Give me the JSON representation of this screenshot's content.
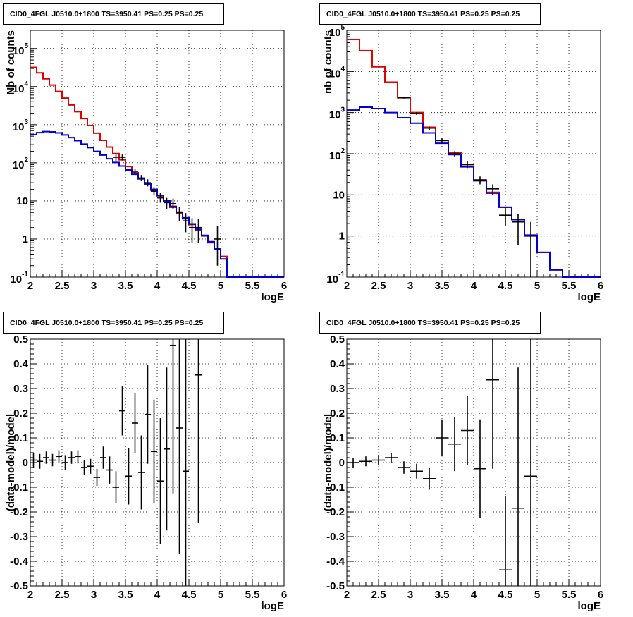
{
  "chart_data": [
    {
      "type": "histogram",
      "title": "CID0_4FGL J0510.0+1800 TS=3950.41 PS=0.25 PS=0.25",
      "xlabel": "logE",
      "ylabel": "Nb of counts",
      "xlim": [
        2,
        6
      ],
      "ylim": [
        0.1,
        300000
      ],
      "log_y": true,
      "grid": true,
      "x_ticks": [
        "2",
        "2.5",
        "3",
        "3.5",
        "4",
        "4.5",
        "5",
        "5.5",
        "6"
      ],
      "y_ticks": [
        {
          "value": 0.1,
          "base": "10",
          "exp": "-1"
        },
        {
          "value": 1,
          "label": "1"
        },
        {
          "value": 10,
          "label": "10"
        },
        {
          "value": 100,
          "base": "10",
          "exp": "2"
        },
        {
          "value": 1000,
          "base": "10",
          "exp": "3"
        },
        {
          "value": 10000,
          "base": "10",
          "exp": "4"
        },
        {
          "value": 100000,
          "base": "10",
          "exp": "5"
        }
      ],
      "bin_edges": [
        2.0,
        2.1,
        2.2,
        2.3,
        2.4,
        2.5,
        2.6,
        2.7,
        2.8,
        2.9,
        3.0,
        3.1,
        3.2,
        3.3,
        3.4,
        3.5,
        3.6,
        3.7,
        3.8,
        3.9,
        4.0,
        4.1,
        4.2,
        4.3,
        4.4,
        4.5,
        4.6,
        4.7,
        4.8,
        4.9,
        5.0,
        5.1,
        5.2,
        5.3,
        5.4,
        5.5,
        5.6,
        5.7,
        5.8,
        5.9,
        6.0
      ],
      "series": [
        {
          "color": "#e00000",
          "values": [
            32000,
            23000,
            16000,
            11000,
            7500,
            5000,
            3300,
            2200,
            1450,
            950,
            600,
            390,
            260,
            175,
            120,
            80,
            55,
            38,
            27,
            19,
            13.5,
            9.5,
            6.8,
            4.8,
            3.4,
            2.4,
            1.7,
            1.2,
            0.8,
            0.55,
            0.35,
            0.1,
            0.1,
            0.1,
            0.1,
            0.1,
            0.1,
            0.1,
            0.1,
            0.1
          ]
        },
        {
          "color": "#0000d0",
          "values": [
            550,
            620,
            660,
            650,
            610,
            540,
            460,
            380,
            310,
            250,
            200,
            160,
            128,
            102,
            82,
            65,
            50,
            38,
            28,
            20,
            14,
            10,
            7.2,
            5.1,
            3.6,
            2.5,
            1.8,
            1.25,
            0.85,
            0.55,
            0.3,
            0.1,
            0.1,
            0.1,
            0.1,
            0.1,
            0.1,
            0.1,
            0.1,
            0.1
          ]
        }
      ],
      "data_points": {
        "x": [
          3.35,
          3.45,
          3.65,
          3.75,
          3.85,
          3.95,
          4.05,
          4.15,
          4.25,
          4.35,
          4.45,
          4.55,
          4.65,
          4.95
        ],
        "y": [
          140,
          140,
          60,
          40,
          30,
          18,
          12,
          9,
          8.5,
          5,
          3,
          2,
          2,
          1
        ],
        "y_low": [
          110,
          115,
          50,
          33,
          24,
          14,
          9,
          6,
          6,
          3,
          1.5,
          0.8,
          0.8,
          0.2
        ],
        "y_high": [
          170,
          165,
          70,
          48,
          37,
          23,
          16,
          12,
          11.5,
          7,
          4.8,
          3.5,
          3.4,
          2.2
        ]
      }
    },
    {
      "type": "histogram",
      "title": "CID0_4FGL J0510.0+1800 TS=3950.41 PS=0.25 PS=0.25",
      "xlabel": "logE",
      "ylabel": "nb of counts",
      "xlim": [
        2,
        6
      ],
      "ylim": [
        0.1,
        100000
      ],
      "log_y": true,
      "grid": true,
      "x_ticks": [
        "2",
        "2.5",
        "3",
        "3.5",
        "4",
        "4.5",
        "5",
        "5.5",
        "6"
      ],
      "y_ticks": [
        {
          "value": 0.1,
          "base": "10",
          "exp": "-1"
        },
        {
          "value": 1,
          "label": "1"
        },
        {
          "value": 10,
          "label": "10"
        },
        {
          "value": 100,
          "base": "10",
          "exp": "2"
        },
        {
          "value": 1000,
          "base": "10",
          "exp": "3"
        },
        {
          "value": 10000,
          "base": "10",
          "exp": "4"
        },
        {
          "value": 100000,
          "base": "10",
          "exp": "5"
        }
      ],
      "bin_edges": [
        2.0,
        2.2,
        2.4,
        2.6,
        2.8,
        3.0,
        3.2,
        3.4,
        3.6,
        3.8,
        4.0,
        4.2,
        4.4,
        4.6,
        4.8,
        5.0,
        5.2,
        5.4,
        5.6,
        5.8,
        6.0
      ],
      "series": [
        {
          "color": "#e00000",
          "values": [
            60000,
            32000,
            13000,
            5500,
            2300,
            1000,
            440,
            210,
            105,
            50,
            23,
            11.5,
            5,
            2.5,
            1,
            0.4,
            0.15,
            0.1,
            0.1,
            0.1
          ]
        },
        {
          "color": "#0000d0",
          "values": [
            1150,
            1350,
            1250,
            1000,
            750,
            550,
            320,
            180,
            95,
            48,
            22,
            11,
            5,
            2.5,
            1.05,
            0.4,
            0.15,
            0.1,
            0.1,
            0.1
          ]
        }
      ],
      "data_points": {
        "x": [
          2.9,
          3.1,
          3.3,
          3.5,
          3.7,
          3.9,
          4.1,
          4.3,
          4.5,
          4.7,
          4.9
        ],
        "y": [
          2300,
          950,
          420,
          210,
          100,
          55,
          23,
          14,
          3.2,
          2.2,
          1
        ],
        "y_low": [
          2200,
          880,
          380,
          180,
          85,
          45,
          18,
          10,
          1.8,
          0.6,
          0.1
        ],
        "y_high": [
          2400,
          1020,
          460,
          240,
          115,
          65,
          28,
          18,
          5,
          3.5,
          2.2
        ]
      }
    },
    {
      "type": "scatter",
      "title": "CID0_4FGL J0510.0+1800 TS=3950.41 PS=0.25 PS=0.25",
      "xlabel": "logE",
      "ylabel": "(data-model)/model",
      "xlim": [
        2,
        6
      ],
      "ylim": [
        -0.5,
        0.5
      ],
      "grid": true,
      "x_ticks": [
        "2",
        "2.5",
        "3",
        "3.5",
        "4",
        "4.5",
        "5",
        "5.5",
        "6"
      ],
      "y_ticks": [
        "-0.5",
        "-0.4",
        "-0.3",
        "-0.2",
        "-0.1",
        "0",
        "0.1",
        "0.2",
        "0.3",
        "0.4",
        "0.5"
      ],
      "x_halfwidth": 0.05,
      "points": {
        "x": [
          2.05,
          2.15,
          2.25,
          2.35,
          2.45,
          2.55,
          2.65,
          2.75,
          2.85,
          2.95,
          3.05,
          3.15,
          3.25,
          3.35,
          3.45,
          3.55,
          3.65,
          3.75,
          3.85,
          3.95,
          4.05,
          4.15,
          4.25,
          4.35,
          4.45,
          4.65
        ],
        "y": [
          0.01,
          0.005,
          0.02,
          0.01,
          0.025,
          0.0,
          0.02,
          0.025,
          -0.02,
          -0.015,
          -0.06,
          0.02,
          -0.03,
          -0.1,
          0.21,
          -0.055,
          0.16,
          -0.04,
          0.195,
          0.045,
          -0.075,
          0.055,
          0.475,
          0.14,
          -0.035,
          0.355
        ],
        "err": [
          0.03,
          0.03,
          0.025,
          0.025,
          0.025,
          0.03,
          0.025,
          0.025,
          0.03,
          0.03,
          0.035,
          0.045,
          0.055,
          0.065,
          0.1,
          0.115,
          0.12,
          0.15,
          0.2,
          0.21,
          0.255,
          0.33,
          0.6,
          0.51,
          0.6,
          0.6
        ]
      }
    },
    {
      "type": "scatter",
      "title": "CID0_4FGL J0510.0+1800 TS=3950.41 PS=0.25 PS=0.25",
      "xlabel": "logE",
      "ylabel": "(data-model)/model",
      "xlim": [
        2,
        6
      ],
      "ylim": [
        -0.5,
        0.5
      ],
      "grid": true,
      "x_ticks": [
        "2",
        "2.5",
        "3",
        "3.5",
        "4",
        "4.5",
        "5",
        "5.5",
        "6"
      ],
      "y_ticks": [
        "-0.5",
        "-0.4",
        "-0.3",
        "-0.2",
        "-0.1",
        "0",
        "0.1",
        "0.2",
        "0.3",
        "0.4",
        "0.5"
      ],
      "x_halfwidth": 0.1,
      "points": {
        "x": [
          2.1,
          2.3,
          2.5,
          2.7,
          2.9,
          3.1,
          3.3,
          3.5,
          3.7,
          3.9,
          4.1,
          4.3,
          4.5,
          4.7,
          4.9
        ],
        "y": [
          0.0,
          0.005,
          0.01,
          0.02,
          -0.02,
          -0.035,
          -0.065,
          0.1,
          0.075,
          0.13,
          -0.025,
          0.335,
          -0.435,
          -0.185,
          -0.055
        ],
        "err": [
          0.02,
          0.02,
          0.02,
          0.02,
          0.025,
          0.03,
          0.045,
          0.075,
          0.11,
          0.14,
          0.2,
          0.36,
          0.3,
          0.57,
          0.6
        ]
      }
    }
  ]
}
